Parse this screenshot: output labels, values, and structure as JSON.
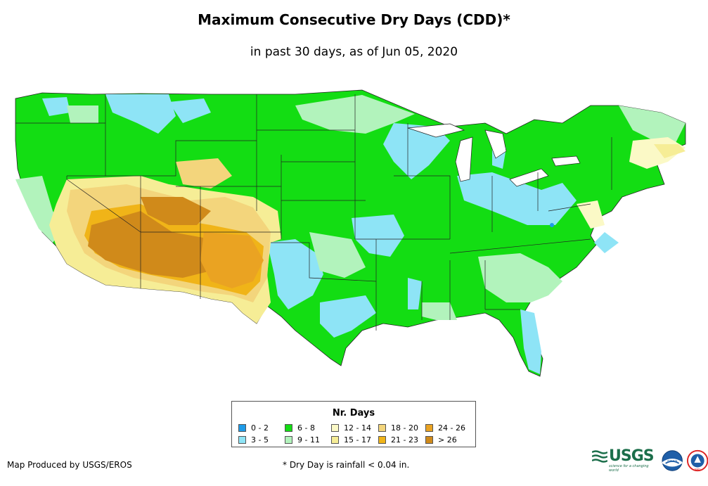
{
  "title": "Maximum Consecutive Dry Days (CDD)*",
  "subtitle": "in past 30 days, as of Jun 05, 2020",
  "legend": {
    "title": "Nr. Days",
    "items": [
      {
        "label": "0 - 2",
        "color": "#1e9be8"
      },
      {
        "label": "3 - 5",
        "color": "#8ee4f6"
      },
      {
        "label": "6 - 8",
        "color": "#13dd13"
      },
      {
        "label": "9 - 11",
        "color": "#b2f3bc"
      },
      {
        "label": "12 - 14",
        "color": "#fbf9c6"
      },
      {
        "label": "15 - 17",
        "color": "#f6ed96"
      },
      {
        "label": "18 - 20",
        "color": "#f3d57c"
      },
      {
        "label": "21 - 23",
        "color": "#f0b418"
      },
      {
        "label": "24 - 26",
        "color": "#eaa322"
      },
      {
        "label": "> 26",
        "color": "#d08a1a"
      }
    ]
  },
  "credit": "Map Produced by USGS/EROS",
  "footnote": "* Dry Day is rainfall < 0.04 in.",
  "logos": {
    "usgs_wordmark": "USGS",
    "usgs_tagline": "science for a changing world",
    "noaa": "noaa",
    "nws": "NWS"
  }
}
